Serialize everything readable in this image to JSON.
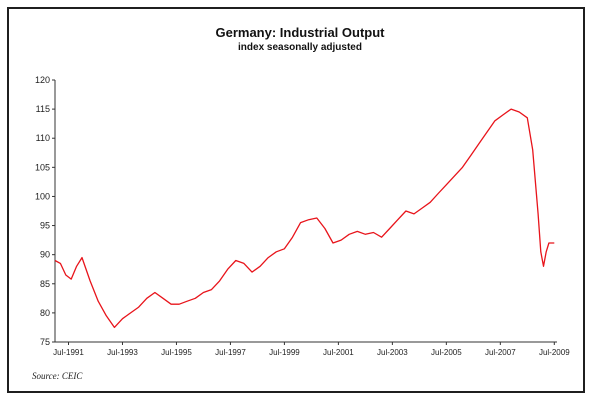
{
  "chart_data": {
    "type": "line",
    "title": "Germany: Industrial Output",
    "subtitle": "index seasonally adjusted",
    "source": "Source: CEIC",
    "xlabel": "",
    "ylabel": "",
    "ylim": [
      75,
      120
    ],
    "y_ticks": [
      75,
      80,
      85,
      90,
      95,
      100,
      105,
      110,
      115,
      120
    ],
    "x_ticks": [
      {
        "label": "Jul-1991",
        "x": 1991.5
      },
      {
        "label": "Jul-1993",
        "x": 1993.5
      },
      {
        "label": "Jul-1995",
        "x": 1995.5
      },
      {
        "label": "Jul-1997",
        "x": 1997.5
      },
      {
        "label": "Jul-1999",
        "x": 1999.5
      },
      {
        "label": "Jul-2001",
        "x": 2001.5
      },
      {
        "label": "Jul-2003",
        "x": 2003.5
      },
      {
        "label": "Jul-2005",
        "x": 2005.5
      },
      {
        "label": "Jul-2007",
        "x": 2007.5
      },
      {
        "label": "Jul-2009",
        "x": 2009.5
      }
    ],
    "xlim": [
      1991.0,
      2009.6
    ],
    "grid": false,
    "line_color": "#e8141b",
    "series": [
      {
        "x": [
          1991.0,
          1991.2,
          1991.4,
          1991.6,
          1991.8,
          1992.0,
          1992.3,
          1992.6,
          1992.9,
          1993.2,
          1993.5,
          1993.8,
          1994.1,
          1994.4,
          1994.7,
          1995.0,
          1995.3,
          1995.6,
          1995.9,
          1996.2,
          1996.5,
          1996.8,
          1997.1,
          1997.4,
          1997.7,
          1998.0,
          1998.3,
          1998.6,
          1998.9,
          1999.2,
          1999.5,
          1999.8,
          2000.1,
          2000.4,
          2000.7,
          2001.0,
          2001.3,
          2001.6,
          2001.9,
          2002.2,
          2002.5,
          2002.8,
          2003.1,
          2003.4,
          2003.7,
          2004.0,
          2004.3,
          2004.6,
          2004.9,
          2005.2,
          2005.5,
          2005.8,
          2006.1,
          2006.4,
          2006.7,
          2007.0,
          2007.3,
          2007.6,
          2007.9,
          2008.2,
          2008.5,
          2008.7,
          2008.9,
          2009.0,
          2009.1,
          2009.2,
          2009.3,
          2009.5
        ],
        "values": [
          89.0,
          88.5,
          86.5,
          85.8,
          88.0,
          89.5,
          85.5,
          82.0,
          79.5,
          77.5,
          79.0,
          80.0,
          81.0,
          82.5,
          83.5,
          82.5,
          81.5,
          81.5,
          82.0,
          82.5,
          83.5,
          84.0,
          85.5,
          87.5,
          89.0,
          88.5,
          87.0,
          88.0,
          89.5,
          90.5,
          91.0,
          93.0,
          95.5,
          96.0,
          96.3,
          94.5,
          92.0,
          92.5,
          93.5,
          94.0,
          93.5,
          93.8,
          93.0,
          94.5,
          96.0,
          97.5,
          97.0,
          98.0,
          99.0,
          100.5,
          102.0,
          103.5,
          105.0,
          107.0,
          109.0,
          111.0,
          113.0,
          114.0,
          115.0,
          114.5,
          113.5,
          108.0,
          97.0,
          90.5,
          88.0,
          90.5,
          92.0,
          92.0
        ]
      }
    ]
  }
}
